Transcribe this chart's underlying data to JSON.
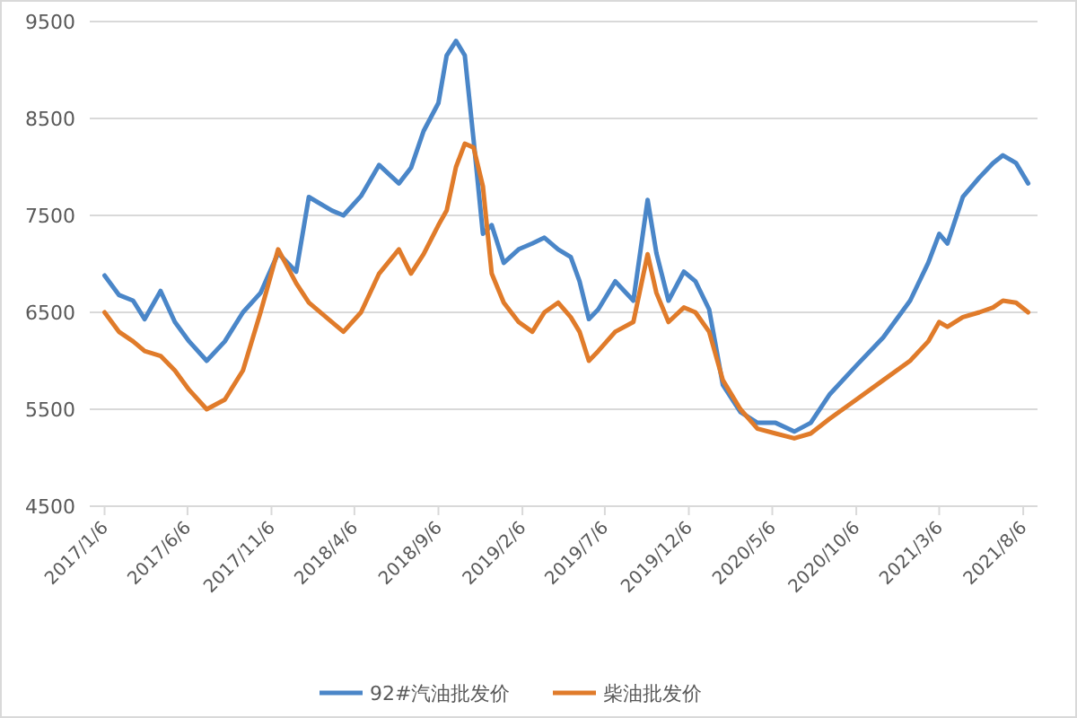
{
  "chart_data": {
    "type": "line",
    "x": [
      "2017-01-06",
      "2017-02-01",
      "2017-02-27",
      "2017-03-20",
      "2017-04-18",
      "2017-05-14",
      "2017-06-09",
      "2017-07-11",
      "2017-08-13",
      "2017-09-15",
      "2017-10-17",
      "2017-11-18",
      "2017-12-21",
      "2018-01-13",
      "2018-02-24",
      "2018-03-17",
      "2018-04-18",
      "2018-05-21",
      "2018-06-26",
      "2018-07-18",
      "2018-08-10",
      "2018-09-06",
      "2018-09-21",
      "2018-10-08",
      "2018-10-24",
      "2018-11-09",
      "2018-11-26",
      "2018-12-12",
      "2019-01-03",
      "2019-01-30",
      "2019-02-24",
      "2019-03-18",
      "2019-04-12",
      "2019-05-05",
      "2019-05-21",
      "2019-06-07",
      "2019-06-24",
      "2019-07-25",
      "2019-08-27",
      "2019-09-22",
      "2019-10-08",
      "2019-10-30",
      "2019-11-27",
      "2019-12-18",
      "2020-01-12",
      "2020-02-06",
      "2020-03-09",
      "2020-04-09",
      "2020-05-12",
      "2020-06-15",
      "2020-07-15",
      "2020-08-18",
      "2020-10-06",
      "2020-11-24",
      "2021-01-12",
      "2021-02-14",
      "2021-03-06",
      "2021-03-21",
      "2021-04-18",
      "2021-05-18",
      "2021-06-12",
      "2021-06-30",
      "2021-07-24",
      "2021-08-15"
    ],
    "series": [
      {
        "name": "92#汽油批发价",
        "color": "#4a86c8",
        "values": [
          6880,
          6680,
          6620,
          6430,
          6720,
          6400,
          6200,
          6000,
          6200,
          6500,
          6700,
          7110,
          6920,
          7690,
          7550,
          7500,
          7700,
          8020,
          7830,
          7990,
          8370,
          8660,
          9150,
          9300,
          9150,
          8280,
          7310,
          7400,
          7010,
          7150,
          7210,
          7270,
          7150,
          7070,
          6820,
          6430,
          6530,
          6820,
          6620,
          7660,
          7110,
          6620,
          6920,
          6820,
          6530,
          5750,
          5470,
          5360,
          5360,
          5270,
          5360,
          5650,
          5950,
          6240,
          6620,
          7010,
          7310,
          7210,
          7690,
          7890,
          8040,
          8120,
          8040,
          7830
        ]
      },
      {
        "name": "柴油批发价",
        "color": "#e07b2a",
        "values": [
          6500,
          6300,
          6200,
          6100,
          6050,
          5900,
          5700,
          5500,
          5600,
          5900,
          6500,
          7150,
          6800,
          6600,
          6400,
          6300,
          6500,
          6900,
          7150,
          6900,
          7100,
          7400,
          7550,
          8000,
          8240,
          8200,
          7800,
          6900,
          6600,
          6400,
          6300,
          6500,
          6600,
          6450,
          6300,
          6000,
          6100,
          6300,
          6400,
          7100,
          6700,
          6400,
          6550,
          6500,
          6300,
          5800,
          5500,
          5300,
          5250,
          5200,
          5250,
          5400,
          5600,
          5800,
          6000,
          6200,
          6400,
          6350,
          6450,
          6500,
          6550,
          6620,
          6600,
          6500
        ]
      }
    ],
    "xlim": [
      "2016-12-10",
      "2021-09-01"
    ],
    "xticks": [
      {
        "value": "2017-01-06",
        "label": "2017/1/6"
      },
      {
        "value": "2017-06-06",
        "label": "2017/6/6"
      },
      {
        "value": "2017-11-06",
        "label": "2017/11/6"
      },
      {
        "value": "2018-04-06",
        "label": "2018/4/6"
      },
      {
        "value": "2018-09-06",
        "label": "2018/9/6"
      },
      {
        "value": "2019-02-06",
        "label": "2019/2/6"
      },
      {
        "value": "2019-07-06",
        "label": "2019/7/6"
      },
      {
        "value": "2019-12-06",
        "label": "2019/12/6"
      },
      {
        "value": "2020-05-06",
        "label": "2020/5/6"
      },
      {
        "value": "2020-10-06",
        "label": "2020/10/6"
      },
      {
        "value": "2021-03-06",
        "label": "2021/3/6"
      },
      {
        "value": "2021-08-06",
        "label": "2021/8/6"
      }
    ],
    "ylim": [
      4500,
      9500
    ],
    "yticks": [
      4500,
      5500,
      6500,
      7500,
      8500,
      9500
    ],
    "grid": "y",
    "legend": "bottom",
    "marker": "none",
    "line_style": "solid"
  }
}
